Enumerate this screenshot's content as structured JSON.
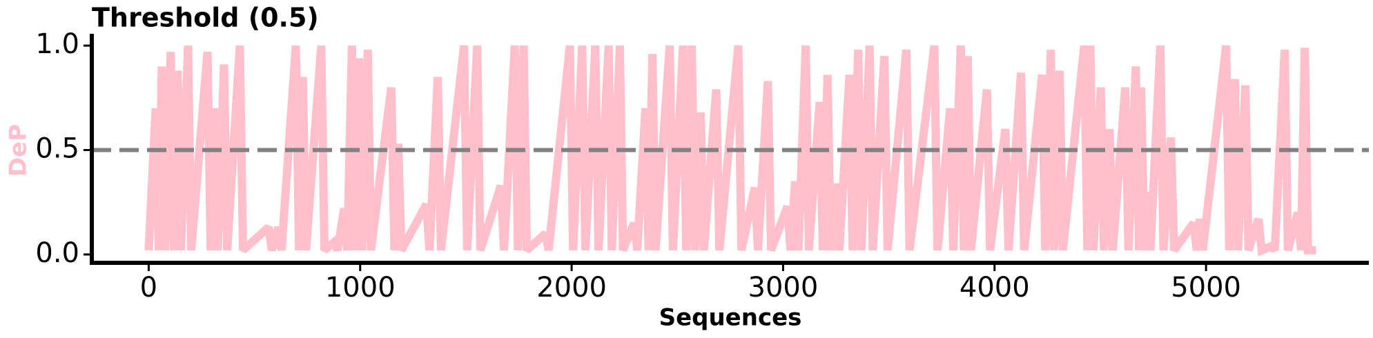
{
  "chart_data": {
    "type": "line",
    "title": "Threshold (0.5)",
    "xlabel": "Sequences",
    "ylabel": "DeP",
    "threshold": 0.5,
    "threshold_color": "#808080",
    "x": [
      0,
      33,
      48,
      62,
      77,
      104,
      119,
      137,
      152,
      186,
      201,
      278,
      293,
      311,
      326,
      356,
      371,
      431,
      446,
      567,
      582,
      613,
      628,
      696,
      711,
      729,
      744,
      816,
      831,
      878,
      893,
      924,
      939,
      961,
      976,
      994,
      1009,
      1036,
      1051,
      1147,
      1162,
      1180,
      1195,
      1313,
      1328,
      1367,
      1382,
      1491,
      1506,
      1553,
      1568,
      1665,
      1680,
      1731,
      1746,
      1773,
      1788,
      1876,
      1891,
      1992,
      2007,
      2050,
      2065,
      2112,
      2127,
      2175,
      2190,
      2228,
      2243,
      2295,
      2310,
      2349,
      2364,
      2382,
      2397,
      2464,
      2479,
      2527,
      2542,
      2568,
      2583,
      2610,
      2625,
      2684,
      2699,
      2788,
      2803,
      2866,
      2881,
      2928,
      2943,
      3020,
      3035,
      3057,
      3072,
      3107,
      3122,
      3173,
      3188,
      3210,
      3225,
      3251,
      3266,
      3314,
      3329,
      3355,
      3370,
      3409,
      3424,
      3479,
      3494,
      3583,
      3598,
      3715,
      3730,
      3790,
      3805,
      3840,
      3855,
      3873,
      3888,
      3964,
      3979,
      4051,
      4066,
      4125,
      4140,
      4225,
      4240,
      4266,
      4281,
      4308,
      4323,
      4424,
      4439,
      4453,
      4468,
      4502,
      4517,
      4544,
      4559,
      4618,
      4633,
      4668,
      4683,
      4693,
      4708,
      4722,
      4737,
      4784,
      4799,
      4834,
      4849,
      4941,
      4956,
      4970,
      4985,
      5095,
      5110,
      5136,
      5151,
      5186,
      5201,
      5248,
      5263,
      5310,
      5325,
      5372,
      5387,
      5434,
      5449,
      5467,
      5482,
      5520
    ],
    "series": [
      {
        "color": "#ffc0cb",
        "values": [
          0.02,
          0.7,
          0.02,
          0.9,
          0.02,
          0.97,
          0.02,
          0.88,
          0.02,
          1.0,
          0.02,
          0.97,
          0.02,
          0.7,
          0.02,
          0.91,
          0.02,
          1.0,
          0.02,
          0.13,
          0.02,
          0.13,
          0.02,
          1.0,
          0.02,
          0.85,
          0.02,
          1.0,
          0.02,
          0.06,
          0.02,
          0.22,
          0.02,
          1.0,
          0.02,
          0.94,
          0.02,
          0.98,
          0.02,
          0.8,
          0.02,
          0.53,
          0.02,
          0.24,
          0.02,
          0.85,
          0.02,
          1.0,
          0.02,
          1.0,
          0.02,
          0.33,
          0.02,
          1.0,
          0.02,
          1.0,
          0.02,
          0.1,
          0.02,
          1.0,
          0.02,
          1.0,
          0.02,
          1.0,
          0.02,
          1.0,
          0.02,
          1.0,
          0.02,
          0.15,
          0.02,
          0.7,
          0.02,
          0.96,
          0.02,
          1.0,
          0.02,
          1.0,
          0.02,
          1.0,
          0.02,
          0.68,
          0.02,
          0.79,
          0.02,
          1.0,
          0.02,
          0.32,
          0.02,
          0.83,
          0.02,
          0.23,
          0.02,
          0.35,
          0.02,
          1.0,
          0.02,
          0.73,
          0.02,
          0.86,
          0.02,
          0.34,
          0.02,
          0.86,
          0.02,
          0.98,
          0.02,
          1.0,
          0.02,
          0.95,
          0.02,
          0.98,
          0.02,
          1.0,
          0.02,
          0.7,
          0.02,
          1.0,
          0.02,
          0.95,
          0.02,
          0.79,
          0.02,
          0.6,
          0.02,
          0.87,
          0.02,
          0.86,
          0.02,
          0.98,
          0.02,
          0.88,
          0.02,
          1.0,
          0.02,
          1.0,
          0.02,
          0.8,
          0.02,
          0.6,
          0.02,
          0.8,
          0.02,
          0.9,
          0.02,
          0.8,
          0.02,
          0.3,
          0.02,
          1.0,
          0.02,
          0.56,
          0.02,
          0.15,
          0.02,
          0.17,
          0.02,
          1.0,
          0.02,
          0.84,
          0.02,
          0.81,
          0.02,
          0.17,
          0.02,
          0.04,
          0.02,
          0.98,
          0.02,
          0.2,
          0.02,
          0.99,
          0.02,
          0.02
        ]
      }
    ],
    "xlim": [
      -269,
      5770
    ],
    "ylim": [
      -0.04,
      1.05
    ],
    "xticks": [
      0,
      1000,
      2000,
      3000,
      4000,
      5000
    ],
    "yticks": [
      {
        "value": 0,
        "label": "0.0"
      },
      0.5,
      {
        "value": 1,
        "label": "1.0"
      }
    ]
  }
}
